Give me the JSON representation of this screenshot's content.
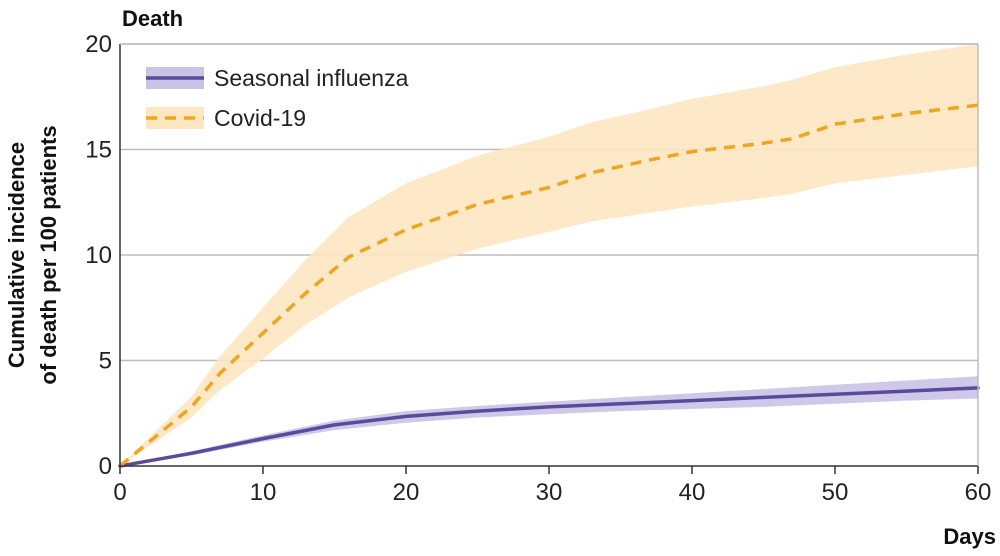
{
  "chart_data": {
    "type": "line",
    "title": "Death",
    "xlabel": "Days",
    "ylabel": [
      "Cumulative incidence",
      "of death per 100 patients"
    ],
    "xlim": [
      0,
      60
    ],
    "ylim": [
      0,
      20
    ],
    "xticks": [
      0,
      10,
      20,
      30,
      40,
      50,
      60
    ],
    "yticks": [
      0,
      5,
      10,
      15,
      20
    ],
    "grid": "horizontal",
    "legend_position": "top-left",
    "colors": {
      "influenza_line": "#5b4a9a",
      "influenza_band": "#c9c3e6",
      "covid_line": "#f0a51e",
      "covid_band": "#fde6c2",
      "grid": "#bdbdbd",
      "axis": "#333333"
    },
    "series": [
      {
        "name": "Seasonal influenza",
        "style": "solid",
        "x": [
          0,
          5,
          10,
          15,
          20,
          25,
          30,
          35,
          40,
          45,
          50,
          55,
          60
        ],
        "y": [
          0,
          0.6,
          1.3,
          1.95,
          2.35,
          2.6,
          2.8,
          2.95,
          3.1,
          3.25,
          3.4,
          3.55,
          3.7
        ],
        "lower": [
          0,
          0.5,
          1.15,
          1.7,
          2.05,
          2.3,
          2.45,
          2.6,
          2.7,
          2.8,
          2.95,
          3.1,
          3.2
        ],
        "upper": [
          0,
          0.7,
          1.45,
          2.15,
          2.6,
          2.85,
          3.05,
          3.25,
          3.45,
          3.65,
          3.85,
          4.05,
          4.25
        ]
      },
      {
        "name": "Covid-19",
        "style": "dashed",
        "x": [
          0,
          5,
          7,
          10,
          13,
          16,
          20,
          25,
          30,
          33,
          37,
          40,
          45,
          47,
          50,
          55,
          60
        ],
        "y": [
          0,
          2.8,
          4.4,
          6.3,
          8.2,
          9.9,
          11.2,
          12.4,
          13.2,
          13.9,
          14.5,
          14.9,
          15.3,
          15.5,
          16.2,
          16.7,
          17.1
        ],
        "lower": [
          0,
          2.3,
          3.6,
          5.1,
          6.7,
          8.0,
          9.2,
          10.3,
          11.1,
          11.6,
          12.0,
          12.3,
          12.7,
          12.9,
          13.4,
          13.8,
          14.2
        ],
        "upper": [
          0,
          3.3,
          5.2,
          7.5,
          9.8,
          11.8,
          13.4,
          14.7,
          15.6,
          16.3,
          16.9,
          17.4,
          18.0,
          18.3,
          18.9,
          19.5,
          20.0
        ]
      }
    ]
  }
}
